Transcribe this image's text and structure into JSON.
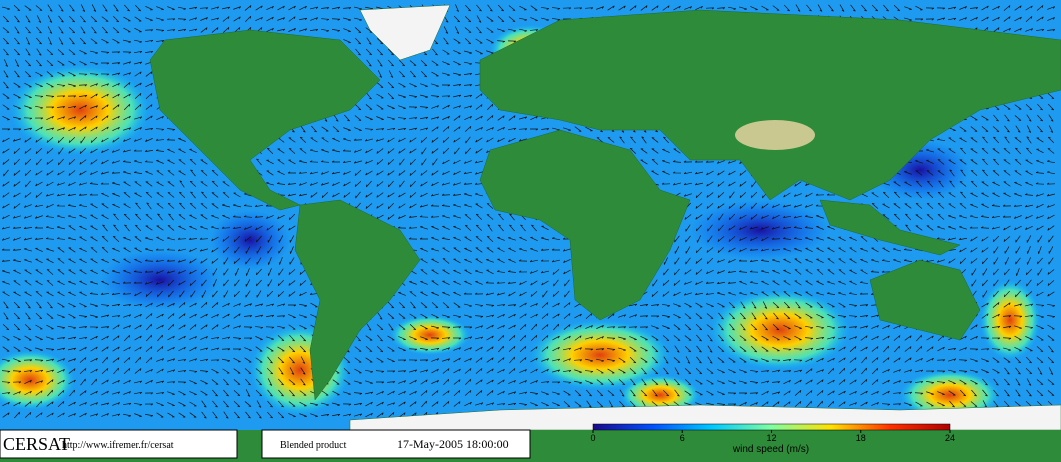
{
  "footer": {
    "logo": "CERSAT",
    "url": "http://www.ifremer.fr/cersat",
    "product": "Blended product",
    "timestamp": "17-May-2005 18:00:00"
  },
  "colorbar": {
    "label": "wind speed (m/s)",
    "range": [
      0,
      24
    ],
    "ticks": [
      0,
      6,
      12,
      18,
      24
    ],
    "colors": [
      "#1a0a8c",
      "#0050ff",
      "#00c8ff",
      "#7fffa0",
      "#ffe000",
      "#ff3000",
      "#b00000"
    ]
  }
}
